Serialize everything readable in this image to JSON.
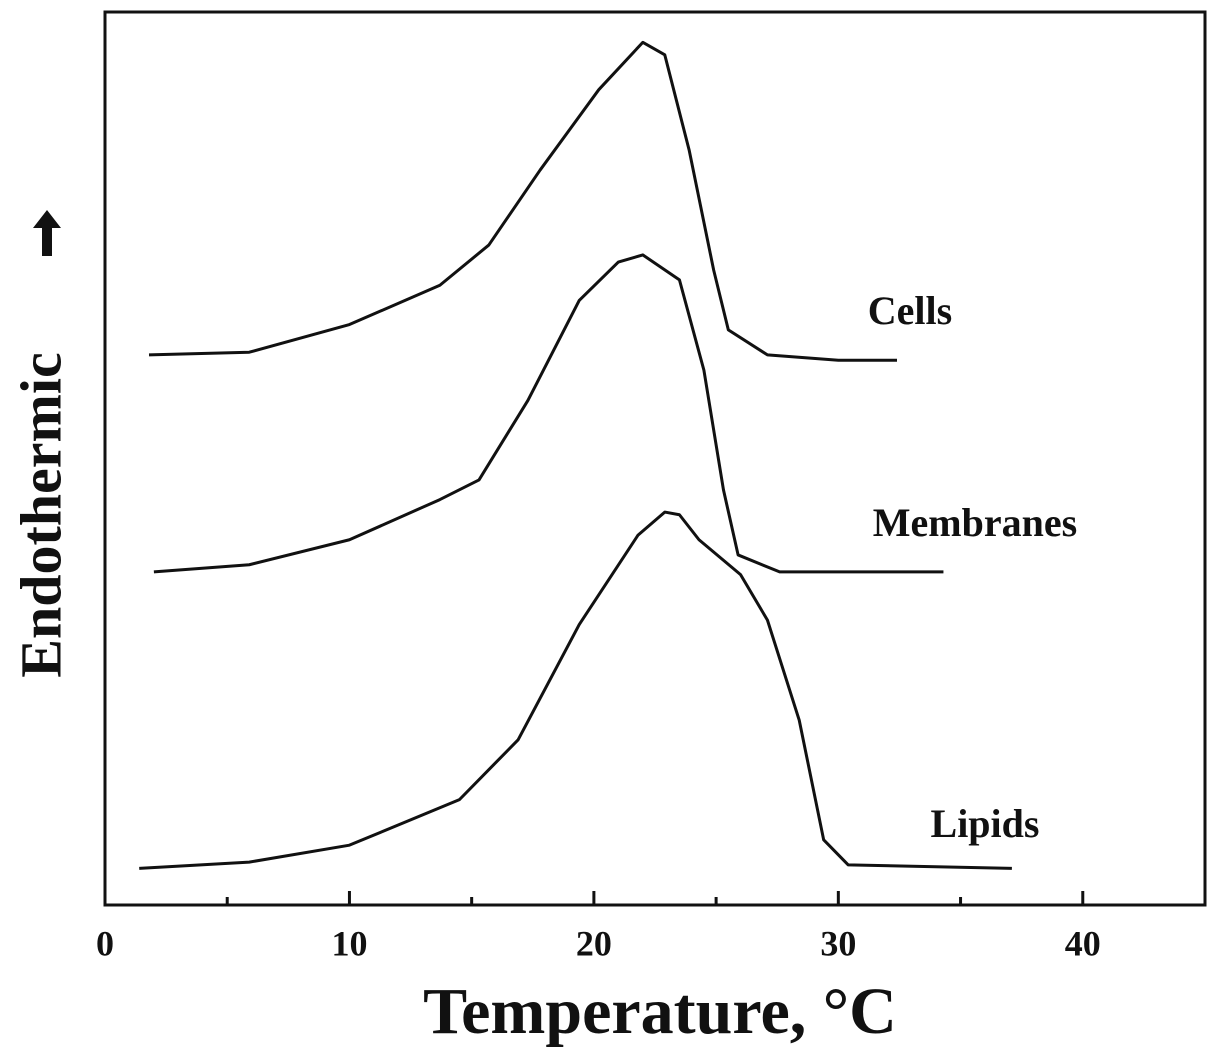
{
  "chart_data": {
    "type": "line",
    "xlabel": "Temperature, °C",
    "ylabel": "Endothermic",
    "xlim": [
      0,
      45
    ],
    "xticks": [
      0,
      10,
      20,
      30,
      40
    ],
    "xminor_ticks": [
      5,
      15,
      25,
      35
    ],
    "ylim": [
      0,
      100
    ],
    "color": "#111111",
    "series": [
      {
        "name": "Cells",
        "x": [
          1.8,
          5.9,
          10,
          13.7,
          15.7,
          17.8,
          20.2,
          22.0,
          22.9,
          23.9,
          24.9,
          25.5,
          27.1,
          30,
          32.4
        ],
        "values": [
          61.6,
          61.9,
          65,
          69.4,
          73.9,
          82.3,
          91.3,
          96.6,
          95.2,
          84.5,
          71.1,
          64.4,
          61.6,
          61.0,
          61.0
        ]
      },
      {
        "name": "Membranes",
        "x": [
          2.0,
          5.9,
          10,
          13.7,
          15.3,
          17.3,
          19.4,
          21.0,
          22.0,
          23.5,
          24.5,
          25.3,
          25.9,
          27.6,
          30.4,
          34.3
        ],
        "values": [
          37.3,
          38.1,
          40.9,
          45.4,
          47.6,
          56.5,
          67.7,
          72.0,
          72.8,
          70.0,
          59.9,
          46.5,
          39.2,
          37.3,
          37.3,
          37.3
        ]
      },
      {
        "name": "Lipids",
        "x": [
          1.4,
          5.9,
          10,
          14.5,
          16.9,
          19.4,
          21.8,
          22.9,
          23.5,
          24.3,
          26.0,
          27.1,
          28.4,
          29.4,
          30.4,
          37.1
        ],
        "values": [
          4.1,
          4.8,
          6.7,
          11.8,
          18.5,
          31.4,
          41.4,
          44.0,
          43.7,
          40.9,
          37.0,
          31.9,
          20.7,
          7.3,
          4.5,
          4.1
        ]
      }
    ]
  }
}
